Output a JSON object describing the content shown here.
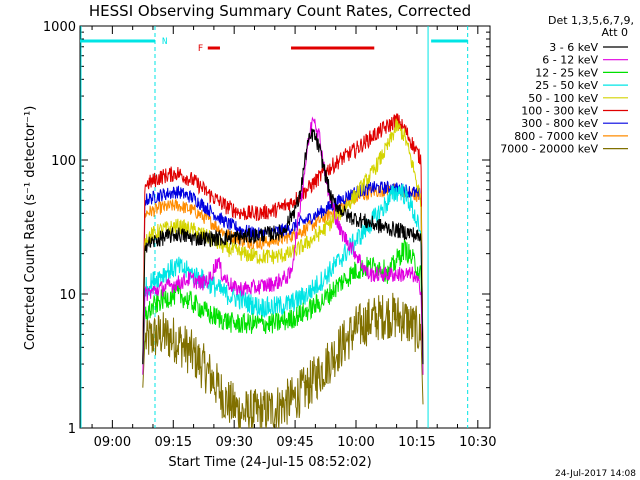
{
  "chart_data": {
    "type": "line",
    "title": "HESSI Observing Summary Count Rates, Corrected",
    "xlabel": "Start Time (24-Jul-15 08:52:02)",
    "ylabel": "Corrected Count Rate (s⁻¹ detector⁻¹)",
    "x_ticks": [
      "09:00",
      "09:15",
      "09:30",
      "09:45",
      "10:00",
      "10:15",
      "10:30"
    ],
    "x_tick_minutes": [
      0,
      15,
      30,
      45,
      60,
      75,
      90
    ],
    "xlim_minutes": [
      -7.97,
      93
    ],
    "y_scale": "log",
    "ylim": [
      1,
      1000
    ],
    "y_ticks": [
      "1",
      "10",
      "100",
      "1000"
    ],
    "y_tick_values": [
      1,
      10,
      100,
      1000
    ],
    "legend_header": [
      "Det 1,3,5,6,7,9,",
      "Att 0"
    ],
    "legend_position": "outside-right",
    "timestamp": "24-Jul-2017 14:08",
    "flag_labels": {
      "night": "N",
      "flare": "F"
    },
    "night_markers": {
      "spans": [
        [
          -7.97,
          10.5
        ],
        [
          78.5,
          87.5
        ]
      ],
      "solid_lines": [
        -7.97,
        77.5
      ],
      "dashed_lines": [
        10.5,
        87.5
      ],
      "color": "#00e5e5"
    },
    "flare_markers": {
      "spans": [
        [
          23.5,
          26.5
        ],
        [
          44.0,
          64.5
        ]
      ],
      "color": "#e00000"
    },
    "series": [
      {
        "name": "3 - 6 keV",
        "color": "#000000",
        "noise": 0.06,
        "points": [
          [
            7.5,
            3
          ],
          [
            8,
            23
          ],
          [
            12,
            26
          ],
          [
            16,
            28
          ],
          [
            20,
            26
          ],
          [
            26,
            26
          ],
          [
            34,
            27
          ],
          [
            42,
            29
          ],
          [
            46,
            50
          ],
          [
            48,
            130
          ],
          [
            49.5,
            160
          ],
          [
            51,
            120
          ],
          [
            54,
            50
          ],
          [
            58,
            38
          ],
          [
            62,
            35
          ],
          [
            66,
            32
          ],
          [
            70,
            30
          ],
          [
            74,
            28
          ],
          [
            76,
            26
          ],
          [
            76.5,
            3
          ]
        ]
      },
      {
        "name": "6 - 12 keV",
        "color": "#e000e0",
        "noise": 0.06,
        "points": [
          [
            7.5,
            2.5
          ],
          [
            8,
            10
          ],
          [
            12,
            11
          ],
          [
            16,
            12
          ],
          [
            19,
            13
          ],
          [
            22,
            12
          ],
          [
            24,
            13
          ],
          [
            26,
            18
          ],
          [
            27,
            14
          ],
          [
            30,
            11
          ],
          [
            34,
            11
          ],
          [
            40,
            12
          ],
          [
            44,
            14
          ],
          [
            46,
            40
          ],
          [
            48,
            120
          ],
          [
            49.5,
            220
          ],
          [
            51,
            150
          ],
          [
            53,
            60
          ],
          [
            56,
            30
          ],
          [
            60,
            20
          ],
          [
            63,
            14
          ],
          [
            66,
            14
          ],
          [
            70,
            14
          ],
          [
            74,
            14
          ],
          [
            76,
            11
          ],
          [
            76.5,
            2.5
          ]
        ]
      },
      {
        "name": "12 - 25 keV",
        "color": "#00e000",
        "noise": 0.08,
        "points": [
          [
            7.5,
            2.5
          ],
          [
            8,
            7
          ],
          [
            12,
            9
          ],
          [
            16,
            10
          ],
          [
            20,
            8.5
          ],
          [
            24,
            7
          ],
          [
            30,
            6
          ],
          [
            36,
            6
          ],
          [
            40,
            6
          ],
          [
            44,
            6.5
          ],
          [
            48,
            7.5
          ],
          [
            52,
            9
          ],
          [
            56,
            12
          ],
          [
            60,
            15
          ],
          [
            63,
            16
          ],
          [
            66,
            16
          ],
          [
            68,
            14
          ],
          [
            70,
            18
          ],
          [
            72,
            22
          ],
          [
            74,
            18
          ],
          [
            76,
            14
          ],
          [
            76.5,
            2.5
          ]
        ]
      },
      {
        "name": "25 - 50 keV",
        "color": "#00e5e5",
        "noise": 0.08,
        "points": [
          [
            7.5,
            3
          ],
          [
            8,
            11
          ],
          [
            12,
            14
          ],
          [
            16,
            16
          ],
          [
            20,
            14
          ],
          [
            24,
            12
          ],
          [
            28,
            10
          ],
          [
            32,
            9
          ],
          [
            36,
            8
          ],
          [
            40,
            8
          ],
          [
            44,
            8.5
          ],
          [
            48,
            10
          ],
          [
            52,
            13
          ],
          [
            56,
            18
          ],
          [
            60,
            25
          ],
          [
            64,
            35
          ],
          [
            67,
            45
          ],
          [
            69,
            55
          ],
          [
            71,
            60
          ],
          [
            73,
            50
          ],
          [
            75,
            35
          ],
          [
            76,
            25
          ],
          [
            76.5,
            3
          ]
        ]
      },
      {
        "name": "50 - 100 keV",
        "color": "#d4d400",
        "noise": 0.06,
        "points": [
          [
            7.5,
            3
          ],
          [
            8,
            26
          ],
          [
            12,
            30
          ],
          [
            16,
            32
          ],
          [
            20,
            30
          ],
          [
            24,
            26
          ],
          [
            28,
            22
          ],
          [
            32,
            20
          ],
          [
            36,
            19
          ],
          [
            40,
            19
          ],
          [
            44,
            20
          ],
          [
            48,
            24
          ],
          [
            52,
            30
          ],
          [
            56,
            40
          ],
          [
            60,
            55
          ],
          [
            64,
            80
          ],
          [
            68,
            130
          ],
          [
            70,
            180
          ],
          [
            72,
            150
          ],
          [
            74,
            90
          ],
          [
            76,
            50
          ],
          [
            76.5,
            3
          ]
        ]
      },
      {
        "name": "100 - 300 keV",
        "color": "#e00000",
        "noise": 0.06,
        "points": [
          [
            7.5,
            3
          ],
          [
            8,
            65
          ],
          [
            12,
            75
          ],
          [
            16,
            80
          ],
          [
            20,
            70
          ],
          [
            24,
            55
          ],
          [
            28,
            45
          ],
          [
            32,
            40
          ],
          [
            36,
            40
          ],
          [
            40,
            42
          ],
          [
            44,
            48
          ],
          [
            48,
            60
          ],
          [
            52,
            80
          ],
          [
            56,
            100
          ],
          [
            60,
            120
          ],
          [
            64,
            150
          ],
          [
            68,
            180
          ],
          [
            70,
            200
          ],
          [
            72,
            170
          ],
          [
            74,
            130
          ],
          [
            76,
            100
          ],
          [
            76.5,
            3
          ]
        ]
      },
      {
        "name": "300 - 800 keV",
        "color": "#0000e0",
        "noise": 0.05,
        "points": [
          [
            7.5,
            3
          ],
          [
            8,
            50
          ],
          [
            12,
            55
          ],
          [
            16,
            58
          ],
          [
            20,
            52
          ],
          [
            24,
            42
          ],
          [
            28,
            34
          ],
          [
            32,
            30
          ],
          [
            36,
            28
          ],
          [
            40,
            29
          ],
          [
            44,
            31
          ],
          [
            48,
            36
          ],
          [
            52,
            42
          ],
          [
            56,
            50
          ],
          [
            60,
            58
          ],
          [
            64,
            62
          ],
          [
            68,
            62
          ],
          [
            72,
            60
          ],
          [
            76,
            55
          ],
          [
            76.5,
            3
          ]
        ]
      },
      {
        "name": "800 - 7000 keV",
        "color": "#ff8c00",
        "noise": 0.05,
        "points": [
          [
            7.5,
            3
          ],
          [
            8,
            40
          ],
          [
            12,
            44
          ],
          [
            16,
            46
          ],
          [
            20,
            42
          ],
          [
            24,
            35
          ],
          [
            28,
            28
          ],
          [
            32,
            25
          ],
          [
            36,
            24
          ],
          [
            40,
            25
          ],
          [
            44,
            27
          ],
          [
            48,
            31
          ],
          [
            52,
            37
          ],
          [
            56,
            45
          ],
          [
            60,
            52
          ],
          [
            64,
            58
          ],
          [
            68,
            60
          ],
          [
            72,
            58
          ],
          [
            76,
            52
          ],
          [
            76.5,
            3
          ]
        ]
      },
      {
        "name": "7000 - 20000 keV",
        "color": "#807000",
        "noise": 0.18,
        "points": [
          [
            7.5,
            2
          ],
          [
            8,
            4.5
          ],
          [
            12,
            5
          ],
          [
            16,
            4.5
          ],
          [
            20,
            3.5
          ],
          [
            24,
            2.5
          ],
          [
            28,
            1.6
          ],
          [
            32,
            1.3
          ],
          [
            36,
            1.3
          ],
          [
            40,
            1.4
          ],
          [
            44,
            1.6
          ],
          [
            48,
            2
          ],
          [
            52,
            2.8
          ],
          [
            56,
            4
          ],
          [
            60,
            5.5
          ],
          [
            64,
            6.5
          ],
          [
            68,
            7
          ],
          [
            72,
            6.5
          ],
          [
            76,
            5
          ],
          [
            76.5,
            1.5
          ]
        ]
      }
    ]
  }
}
